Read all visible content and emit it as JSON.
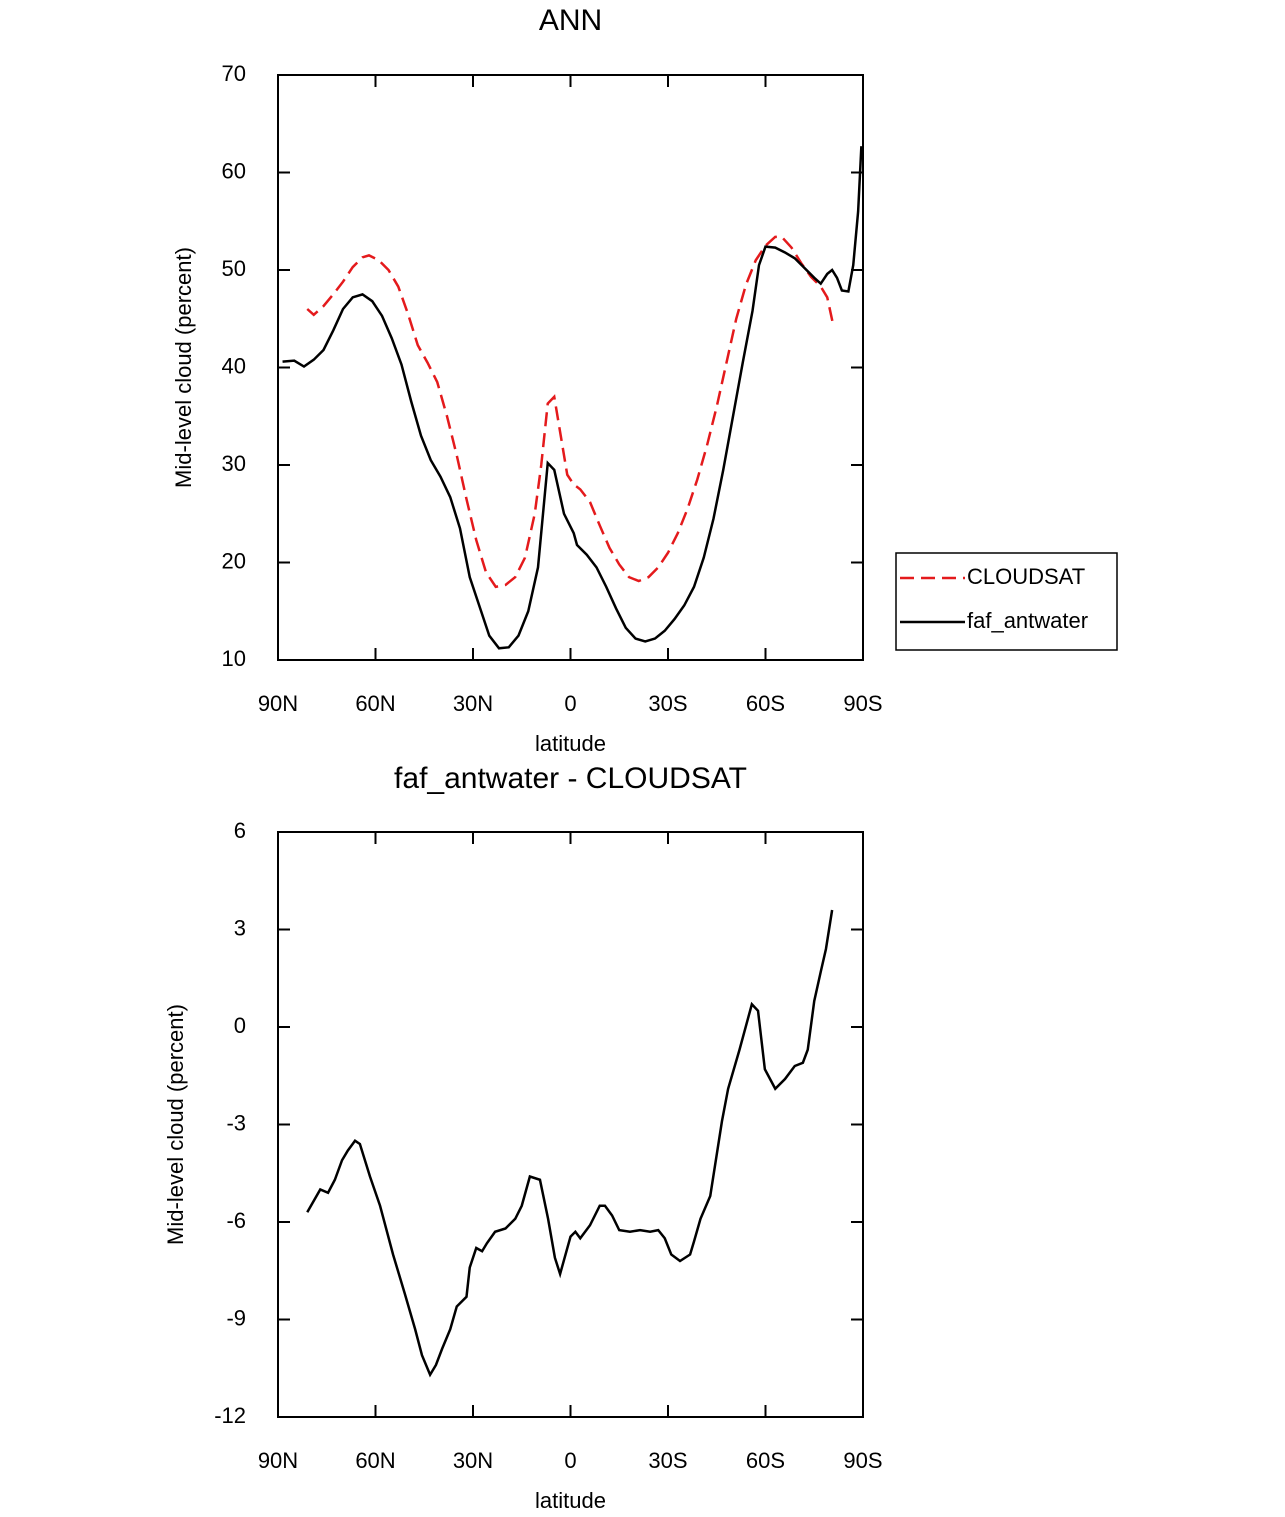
{
  "chart_data": [
    {
      "type": "line",
      "title": "ANN",
      "xlabel": "latitude",
      "ylabel": "Mid-level cloud (percent)",
      "xlim": [
        90,
        -90
      ],
      "xticks": [
        {
          "value": 90,
          "label": "90N"
        },
        {
          "value": 60,
          "label": "60N"
        },
        {
          "value": 30,
          "label": "30N"
        },
        0,
        {
          "value": -30,
          "label": "30S"
        },
        {
          "value": -60,
          "label": "60S"
        },
        {
          "value": -90,
          "label": "90S"
        }
      ],
      "ylim": [
        10,
        70
      ],
      "yticks": [
        10,
        20,
        30,
        40,
        50,
        60,
        70
      ],
      "legend": "right",
      "series": [
        {
          "name": "CLOUDSAT",
          "color": "#e41a1c",
          "dash": true,
          "x": [
            81,
            79,
            76,
            73,
            70,
            67,
            64,
            62,
            59,
            56,
            53,
            50,
            47,
            44,
            41,
            38,
            35,
            32,
            29,
            26,
            23,
            20,
            17,
            14,
            11,
            9,
            7,
            5,
            3,
            1,
            -1,
            -3,
            -6,
            -9,
            -12,
            -15,
            -18,
            -21,
            -24,
            -27,
            -30,
            -33,
            -36,
            -39,
            -42,
            -45,
            -48,
            -51,
            -54,
            -57,
            -60,
            -63,
            -65,
            -68,
            -71,
            -74,
            -77,
            -79,
            -81
          ],
          "values": [
            46,
            45.4,
            46.3,
            47.5,
            48.8,
            50.3,
            51.3,
            51.5,
            51,
            50,
            48.3,
            45.5,
            42.3,
            40.5,
            38.5,
            35,
            31,
            26.5,
            22.3,
            19,
            17.5,
            17.7,
            18.5,
            20.5,
            25,
            30,
            36.3,
            37,
            33,
            29,
            28,
            27.5,
            26.2,
            23.8,
            21.5,
            19.8,
            18.5,
            18.1,
            18.5,
            19.5,
            21,
            23,
            25.5,
            28.5,
            32,
            36,
            40.5,
            45,
            48.5,
            51,
            52.5,
            53.4,
            53.4,
            52.3,
            50.7,
            49.3,
            48.3,
            47.2,
            44.1
          ]
        },
        {
          "name": "faf_antwater",
          "color": "#000000",
          "dash": false,
          "x": [
            88.6,
            85,
            82,
            79,
            76,
            73,
            70,
            67,
            64,
            61,
            58,
            55,
            52,
            49,
            46,
            43,
            40,
            37,
            34,
            31,
            28,
            25,
            22,
            19,
            16,
            13,
            10,
            7,
            5,
            2,
            -1,
            -2,
            -5,
            -8,
            -11,
            -14,
            -17,
            -20,
            -23,
            -26,
            -29,
            -32,
            -35,
            -38,
            -41,
            -44,
            -47,
            -50,
            -53,
            -56,
            -58,
            -60,
            -63,
            -66,
            -69,
            -72,
            -75,
            -77,
            -79,
            -80.5,
            -82,
            -83.5,
            -85.5,
            -87,
            -88.5,
            -89.5
          ],
          "values": [
            40.6,
            40.7,
            40.1,
            40.8,
            41.8,
            43.8,
            46,
            47.2,
            47.5,
            46.8,
            45.3,
            43,
            40.3,
            36.5,
            33,
            30.5,
            28.8,
            26.7,
            23.5,
            18.5,
            15.5,
            12.5,
            11.2,
            11.3,
            12.5,
            15,
            19.5,
            30.2,
            29.5,
            25,
            23,
            21.8,
            20.8,
            19.5,
            17.5,
            15.3,
            13.3,
            12.2,
            11.9,
            12.2,
            13,
            14.2,
            15.6,
            17.5,
            20.5,
            24.5,
            29.5,
            35,
            40.5,
            45.8,
            50.5,
            52.4,
            52.3,
            51.8,
            51.2,
            50.2,
            49.2,
            48.6,
            49.6,
            50,
            49.2,
            47.9,
            47.8,
            50.5,
            56,
            62.7
          ]
        }
      ]
    },
    {
      "type": "line",
      "title": "faf_antwater - CLOUDSAT",
      "xlabel": "latitude",
      "ylabel": "Mid-level cloud (percent)",
      "xlim": [
        90,
        -90
      ],
      "xticks": [
        {
          "value": 90,
          "label": "90N"
        },
        {
          "value": 60,
          "label": "60N"
        },
        {
          "value": 30,
          "label": "30N"
        },
        0,
        {
          "value": -30,
          "label": "30S"
        },
        {
          "value": -60,
          "label": "60S"
        },
        {
          "value": -90,
          "label": "90S"
        }
      ],
      "ylim": [
        -12,
        6
      ],
      "yticks": [
        -12,
        -9,
        -6,
        -3,
        0,
        3,
        6
      ],
      "series": [
        {
          "color": "#000000",
          "dash": false,
          "x": [
            81,
            77,
            74.6,
            72.5,
            70.3,
            68.5,
            66.3,
            64.8,
            61.7,
            58.6,
            54.6,
            51,
            47.8,
            45.7,
            43.2,
            41.4,
            39.5,
            37,
            35,
            32,
            31,
            29,
            27.2,
            25.7,
            23.2,
            20,
            17,
            15,
            12.5,
            9.4,
            6.9,
            4.8,
            3.2,
            0,
            -1.5,
            -3,
            -6,
            -9,
            -10.6,
            -12.8,
            -15,
            -18.3,
            -21.4,
            -24.5,
            -27,
            -29,
            -31,
            -33.7,
            -36.8,
            -38,
            -40,
            -43,
            -46.6,
            -48.5,
            -52,
            -55.8,
            -57.7,
            -59.8,
            -63,
            -66,
            -69,
            -71.5,
            -73,
            -75,
            -77,
            -78.6,
            -80.5
          ],
          "values": [
            -5.7,
            -5.0,
            -5.1,
            -4.7,
            -4.1,
            -3.8,
            -3.5,
            -3.6,
            -4.6,
            -5.5,
            -7.0,
            -8.2,
            -9.3,
            -10.1,
            -10.7,
            -10.4,
            -9.9,
            -9.3,
            -8.6,
            -8.3,
            -7.4,
            -6.8,
            -6.9,
            -6.65,
            -6.3,
            -6.2,
            -5.9,
            -5.5,
            -4.6,
            -4.7,
            -5.9,
            -7.1,
            -7.6,
            -6.45,
            -6.3,
            -6.5,
            -6.1,
            -5.5,
            -5.5,
            -5.8,
            -6.25,
            -6.3,
            -6.25,
            -6.3,
            -6.25,
            -6.5,
            -7.0,
            -7.2,
            -7.0,
            -6.6,
            -5.9,
            -5.2,
            -2.9,
            -1.9,
            -0.7,
            0.7,
            0.5,
            -1.3,
            -1.9,
            -1.6,
            -1.2,
            -1.1,
            -0.7,
            0.8,
            1.7,
            2.4,
            3.6
          ]
        }
      ]
    }
  ]
}
